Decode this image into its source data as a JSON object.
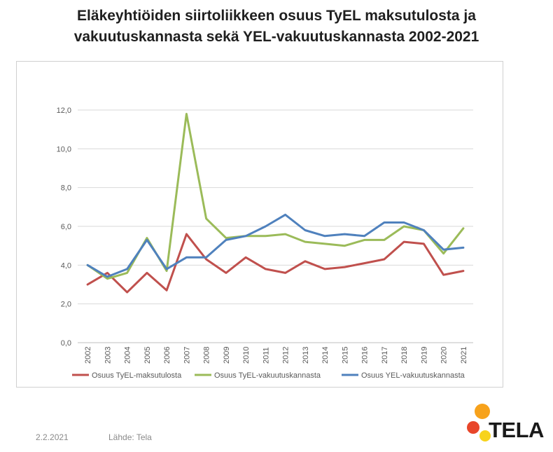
{
  "title": {
    "line1": "Eläkeyhtiöiden siirtoliikkeen osuus TyEL maksutulosta ja",
    "line2": "vakuutuskannasta sekä YEL-vakuutuskannasta 2002-2021"
  },
  "footer": {
    "date": "2.2.2021",
    "source": "Lähde: Tela"
  },
  "logo": {
    "text": "TELA",
    "colors": [
      "#f7a21b",
      "#e8462a",
      "#f7d31b"
    ]
  },
  "chart_data": {
    "type": "line",
    "title": "",
    "xlabel": "",
    "ylabel": "",
    "ylim": [
      0,
      12
    ],
    "y_ticks": [
      "0,0",
      "2,0",
      "4,0",
      "6,0",
      "8,0",
      "10,0",
      "12,0"
    ],
    "grid": true,
    "legend_position": "bottom",
    "categories": [
      "2002",
      "2003",
      "2004",
      "2005",
      "2006",
      "2007",
      "2008",
      "2009",
      "2010",
      "2011",
      "2012",
      "2013",
      "2014",
      "2015",
      "2016",
      "2017",
      "2018",
      "2019",
      "2020",
      "2021"
    ],
    "series": [
      {
        "name": "Osuus TyEL-maksutulosta",
        "color": "#c0504d",
        "values": [
          3.0,
          3.6,
          2.6,
          3.6,
          2.7,
          5.6,
          4.3,
          3.6,
          4.4,
          3.8,
          3.6,
          4.2,
          3.8,
          3.9,
          4.1,
          4.3,
          5.2,
          5.1,
          3.5,
          3.7
        ]
      },
      {
        "name": "Osuus TyEL-vakuutuskannasta",
        "color": "#9bbb59",
        "values": [
          4.0,
          3.3,
          3.6,
          5.4,
          3.7,
          11.8,
          6.4,
          5.4,
          5.5,
          5.5,
          5.6,
          5.2,
          5.1,
          5.0,
          5.3,
          5.3,
          6.0,
          5.8,
          4.6,
          5.9
        ]
      },
      {
        "name": "Osuus YEL-vakuutuskannasta",
        "color": "#4f81bd",
        "values": [
          4.0,
          3.4,
          3.8,
          5.3,
          3.8,
          4.4,
          4.4,
          5.3,
          5.5,
          6.0,
          6.6,
          5.8,
          5.5,
          5.6,
          5.5,
          6.2,
          6.2,
          5.8,
          4.8,
          4.9
        ]
      }
    ]
  }
}
